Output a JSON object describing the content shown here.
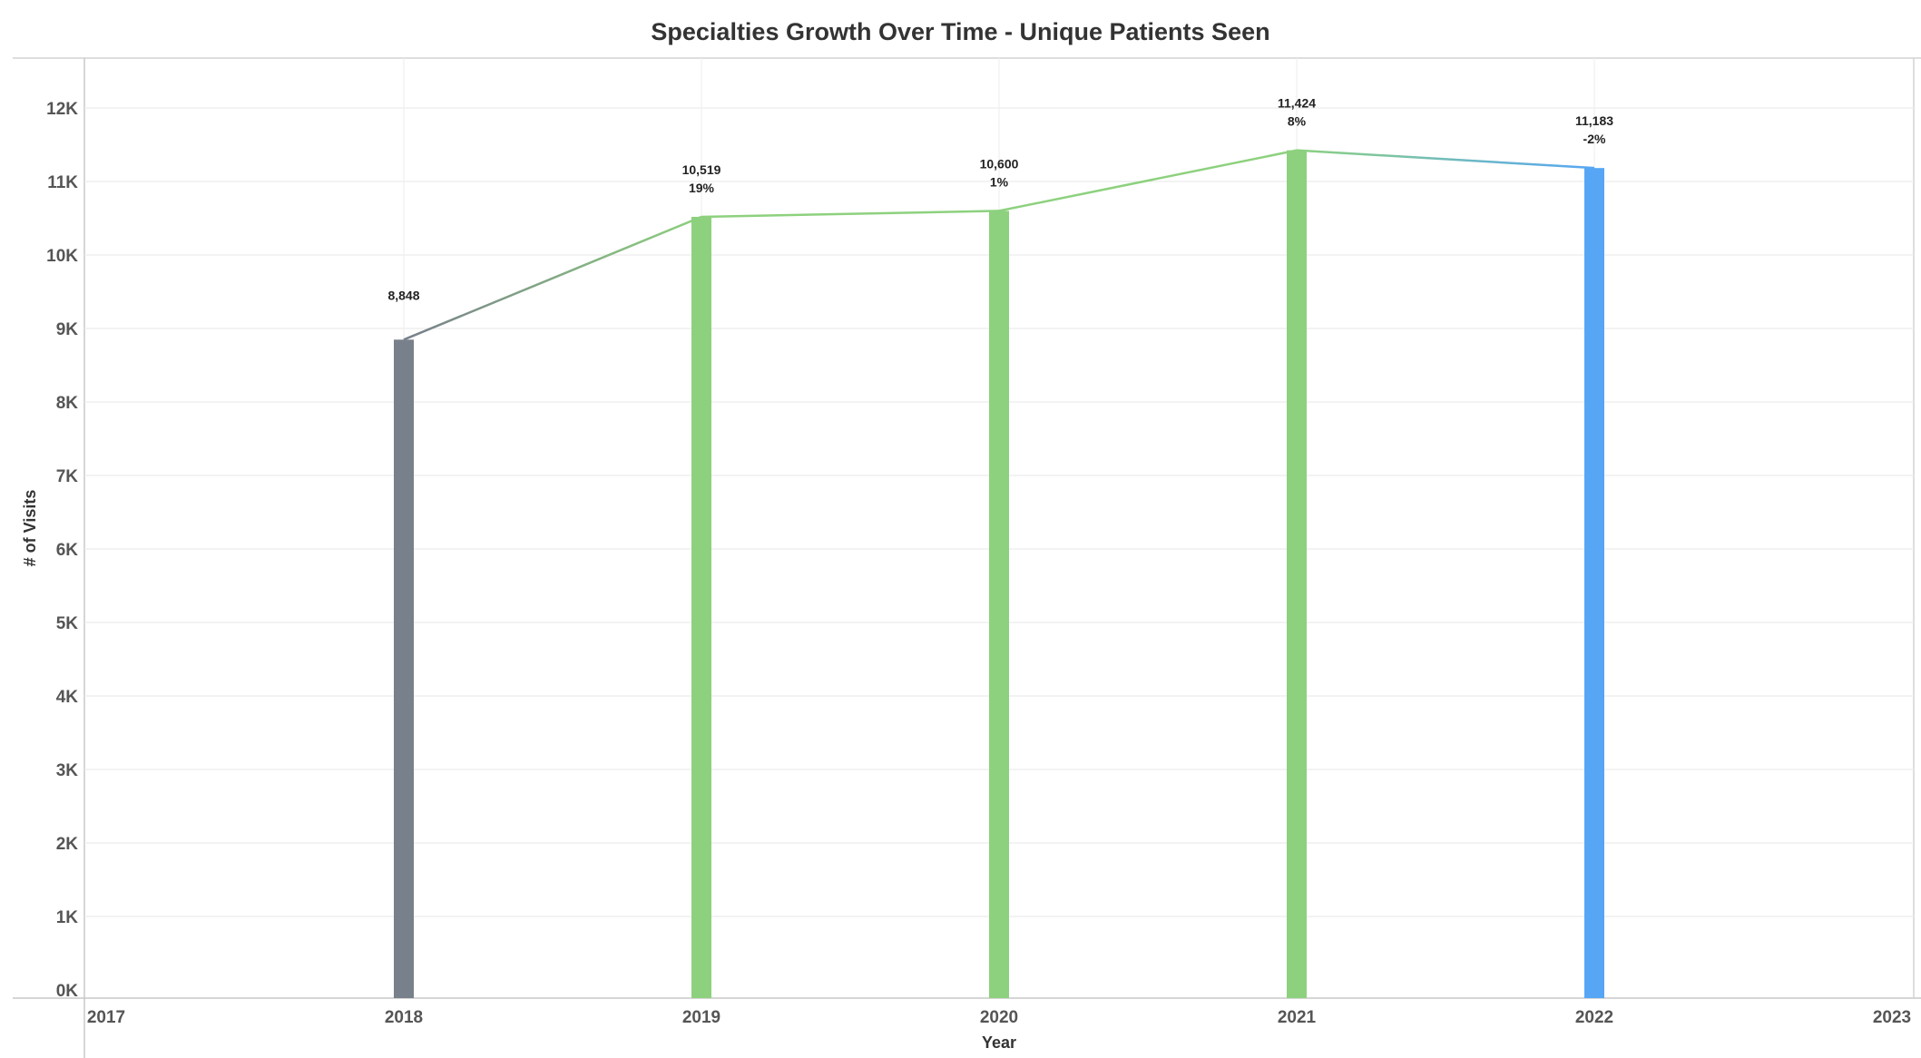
{
  "chart_data": {
    "type": "bar",
    "title": "Specialties Growth Over Time - Unique Patients Seen",
    "xlabel": "Year",
    "ylabel": "# of Visits",
    "x_ticks": [
      "2017",
      "2018",
      "2019",
      "2020",
      "2021",
      "2022",
      "2023"
    ],
    "xlim": [
      2017,
      2023
    ],
    "y_ticks": [
      "0K",
      "1K",
      "2K",
      "3K",
      "4K",
      "5K",
      "6K",
      "7K",
      "8K",
      "9K",
      "10K",
      "11K",
      "12K"
    ],
    "ylim": [
      0,
      12000
    ],
    "grid": true,
    "categories": [
      "2018",
      "2019",
      "2020",
      "2021",
      "2022"
    ],
    "values": [
      8848,
      10519,
      10600,
      11424,
      11183
    ],
    "value_labels": [
      "8,848",
      "10,519",
      "10,600",
      "11,424",
      "11,183"
    ],
    "growth_labels": [
      "",
      "19%",
      "1%",
      "8%",
      "-2%"
    ],
    "bar_colors": [
      "#78808b",
      "#8dd17e",
      "#8dd17e",
      "#8dd17e",
      "#56a6f5"
    ],
    "line": {
      "segments": [
        {
          "from": "2018",
          "to": "2019",
          "color": "#78808b",
          "color_end": "#8dd17e"
        },
        {
          "from": "2019",
          "to": "2020",
          "color": "#8dd17e"
        },
        {
          "from": "2020",
          "to": "2021",
          "color": "#8dd17e"
        },
        {
          "from": "2021",
          "to": "2022",
          "color": "#8dd17e",
          "color_end": "#56a6f5"
        }
      ]
    }
  }
}
